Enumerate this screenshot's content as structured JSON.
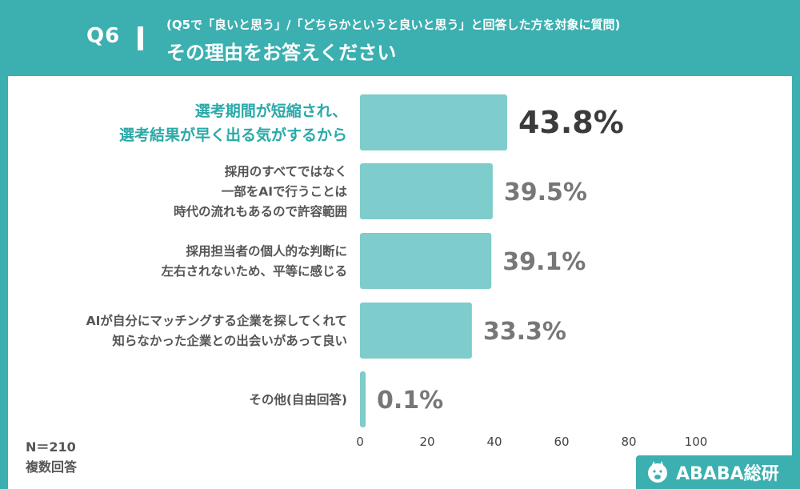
{
  "header": {
    "question_number": "Q6",
    "subtitle": "(Q5で「良いと思う」/「どちらかというと良いと思う」と回答した方を対象に質問)",
    "title": "その理由をお答えください"
  },
  "chart_data": {
    "type": "bar",
    "orientation": "horizontal",
    "categories": [
      [
        "選考期間が短縮され、",
        "選考結果が早く出る気がするから"
      ],
      [
        "採用のすべてではなく",
        "一部をAIで行うことは",
        "時代の流れもあるので許容範囲"
      ],
      [
        "採用担当者の個人的な判断に",
        "左右されないため、平等に感じる"
      ],
      [
        "AIが自分にマッチングする企業を探してくれて",
        "知らなかった企業との出会いがあって良い"
      ],
      [
        "その他(自由回答)"
      ]
    ],
    "values": [
      43.8,
      39.5,
      39.1,
      33.3,
      0.1
    ],
    "value_labels": [
      "43.8%",
      "39.5%",
      "39.1%",
      "33.3%",
      "0.1%"
    ],
    "highlight_index": 0,
    "x_ticks": [
      0,
      20,
      40,
      60,
      80,
      100
    ],
    "x_range": [
      0,
      100
    ],
    "bar_color": "#7ecccb",
    "highlight_label_color": "#2aa9a9",
    "label_color": "#555555",
    "highlight_value_color": "#3b3b3b",
    "value_color": "#777777"
  },
  "footer": {
    "sample_size": "N＝210",
    "note": "複数回答"
  },
  "logo": {
    "text": "ABABA総研",
    "icon": "alpaca-icon"
  }
}
